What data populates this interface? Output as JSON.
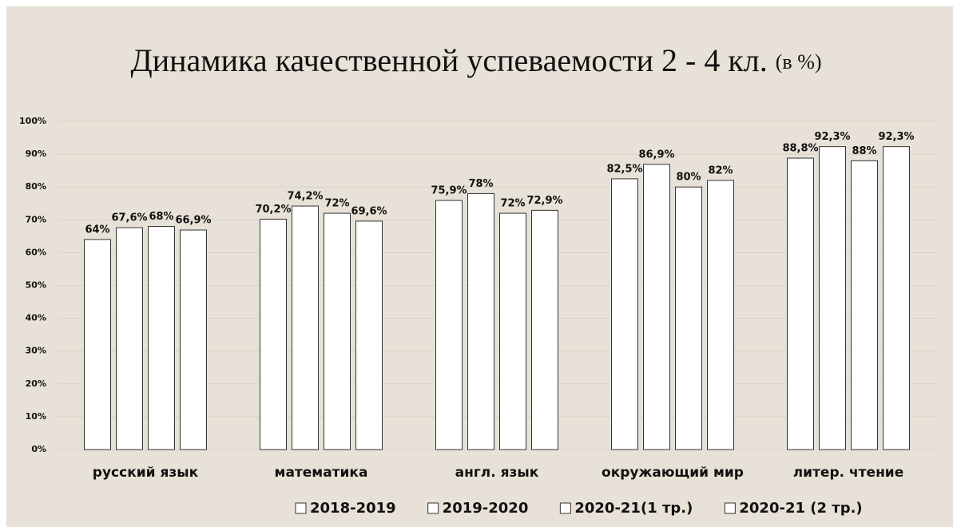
{
  "chart_data": {
    "type": "bar",
    "title": "Динамика качественной успеваемости 2 - 4 кл.",
    "title_note": "(в %)",
    "categories": [
      "русский язык",
      "математика",
      "англ. язык",
      "окружающий мир",
      "литер. чтение"
    ],
    "series": [
      {
        "name": "2018-2019",
        "color": "#ffffff",
        "values": [
          64,
          70.2,
          75.9,
          82.5,
          88.8
        ],
        "value_labels": [
          "64%",
          "70,2%",
          "75,9%",
          "82,5%",
          "88,8%"
        ]
      },
      {
        "name": "2019-2020",
        "color": "#ffffff",
        "values": [
          67.6,
          74.2,
          78,
          86.9,
          92.3
        ],
        "value_labels": [
          "67,6%",
          "74,2%",
          "78%",
          "86,9%",
          "92,3%"
        ]
      },
      {
        "name": "2020-21(1 тр.)",
        "color": "#ffffff",
        "values": [
          68,
          72,
          72,
          80,
          88
        ],
        "value_labels": [
          "68%",
          "72%",
          "72%",
          "80%",
          "88%"
        ]
      },
      {
        "name": "2020-21 (2 тр.)",
        "color": "#ffffff",
        "values": [
          66.9,
          69.6,
          72.9,
          82,
          92.3
        ],
        "value_labels": [
          "66,9%",
          "69,6%",
          "72,9%",
          "82%",
          "92,3%"
        ]
      }
    ],
    "ylim": [
      0,
      100
    ],
    "yticks": [
      {
        "value": 0,
        "label": "0%"
      },
      {
        "value": 10,
        "label": "10%"
      },
      {
        "value": 20,
        "label": "20%"
      },
      {
        "value": 30,
        "label": "30%"
      },
      {
        "value": 40,
        "label": "40%"
      },
      {
        "value": 50,
        "label": "50%"
      },
      {
        "value": 60,
        "label": "60%"
      },
      {
        "value": 70,
        "label": "70%"
      },
      {
        "value": 80,
        "label": "80%"
      },
      {
        "value": 90,
        "label": "90%"
      },
      {
        "value": 100,
        "label": "100%"
      }
    ],
    "grid": true,
    "legend": "bottom"
  }
}
